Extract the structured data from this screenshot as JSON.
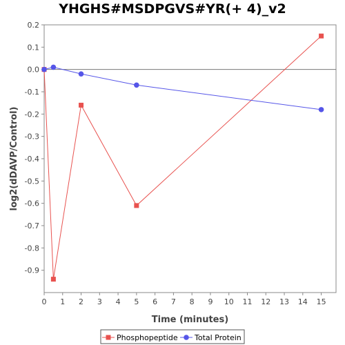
{
  "chart_data": {
    "type": "line",
    "title": "YHGHS#MSDPGVS#YR(+ 4)_v2",
    "xlabel": "Time (minutes)",
    "ylabel": "log2(dDAVP/Control)",
    "xlim": [
      0,
      15.8
    ],
    "ylim": [
      -1.0,
      0.2
    ],
    "xticks": [
      0,
      1,
      2,
      3,
      4,
      5,
      6,
      7,
      8,
      9,
      10,
      11,
      12,
      13,
      14,
      15
    ],
    "yticks": [
      0.2,
      0.1,
      0.0,
      -0.1,
      -0.2,
      -0.3,
      -0.4,
      -0.5,
      -0.6,
      -0.7,
      -0.8,
      -0.9
    ],
    "ytick_labels": [
      "0.2",
      "0.1",
      "0.0",
      "-0.1",
      "-0.2",
      "-0.3",
      "-0.4",
      "-0.5",
      "-0.6",
      "-0.7",
      "-0.8",
      "-0.9"
    ],
    "zero_line": true,
    "grid": false,
    "legend_position": "bottom",
    "series": [
      {
        "name": "Phosphopeptide",
        "color": "#e8524f",
        "marker": "square",
        "x": [
          0,
          0.5,
          2,
          5,
          15
        ],
        "y": [
          0.0,
          -0.94,
          -0.16,
          -0.61,
          0.15
        ]
      },
      {
        "name": "Total Protein",
        "color": "#5555e8",
        "marker": "circle",
        "x": [
          0,
          0.5,
          2,
          5,
          15
        ],
        "y": [
          0.0,
          0.01,
          -0.02,
          -0.07,
          -0.18
        ]
      }
    ]
  }
}
